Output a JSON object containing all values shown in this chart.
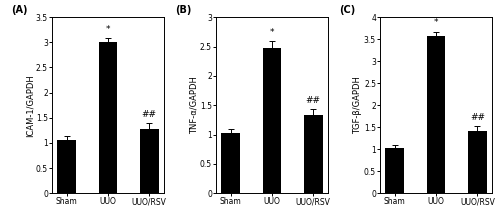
{
  "panels": [
    {
      "label": "(A)",
      "ylabel": "ICAM-1/GAPDH",
      "ylim": [
        0,
        3.5
      ],
      "yticks": [
        0,
        0.5,
        1.0,
        1.5,
        2.0,
        2.5,
        3.0,
        3.5
      ],
      "categories": [
        "Sham",
        "UUO",
        "UUO/RSV"
      ],
      "values": [
        1.05,
        3.0,
        1.27
      ],
      "errors": [
        0.08,
        0.08,
        0.12
      ],
      "sig_uuo": "*",
      "sig_rsv": "##"
    },
    {
      "label": "(B)",
      "ylabel": "TNF-α/GAPDH",
      "ylim": [
        0,
        3.0
      ],
      "yticks": [
        0,
        0.5,
        1.0,
        1.5,
        2.0,
        2.5,
        3.0
      ],
      "categories": [
        "Sham",
        "UUO",
        "UUO/RSV"
      ],
      "values": [
        1.03,
        2.47,
        1.33
      ],
      "errors": [
        0.06,
        0.12,
        0.1
      ],
      "sig_uuo": "*",
      "sig_rsv": "##"
    },
    {
      "label": "(C)",
      "ylabel": "TGF-β/GAPDH",
      "ylim": [
        0,
        4.0
      ],
      "yticks": [
        0,
        0.5,
        1.0,
        1.5,
        2.0,
        2.5,
        3.0,
        3.5,
        4.0
      ],
      "categories": [
        "Sham",
        "UUO",
        "UUO/RSV"
      ],
      "values": [
        1.03,
        3.58,
        1.42
      ],
      "errors": [
        0.07,
        0.09,
        0.1
      ],
      "sig_uuo": "*",
      "sig_rsv": "##"
    }
  ],
  "bar_color": "#000000",
  "bar_width": 0.45,
  "capsize": 2,
  "errorbar_color": "#000000",
  "background_color": "#ffffff",
  "tick_fontsize": 5.5,
  "label_fontsize": 6.0,
  "panel_label_fontsize": 7,
  "sig_fontsize": 6.5
}
